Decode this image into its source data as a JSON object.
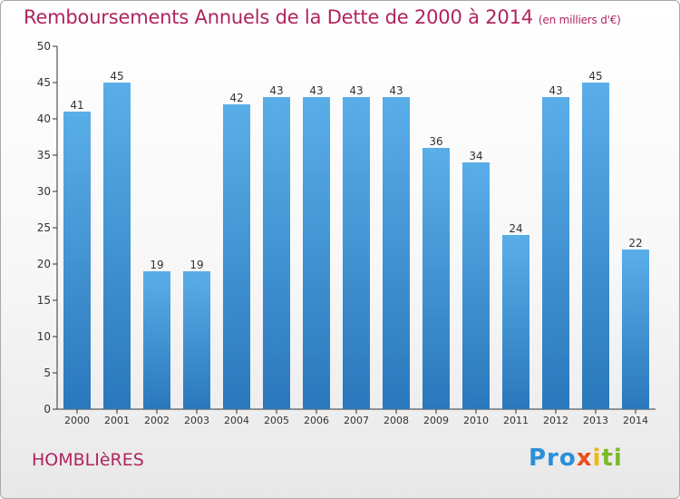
{
  "chart_data": {
    "type": "bar",
    "title": "Remboursements Annuels de la Dette de 2000 à 2014",
    "subtitle": "(en milliers d'€)",
    "categories": [
      "2000",
      "2001",
      "2002",
      "2003",
      "2004",
      "2005",
      "2006",
      "2007",
      "2008",
      "2009",
      "2010",
      "2011",
      "2012",
      "2013",
      "2014"
    ],
    "values": [
      41,
      45,
      19,
      19,
      42,
      43,
      43,
      43,
      43,
      36,
      34,
      24,
      43,
      45,
      22
    ],
    "ylim": [
      0,
      50
    ],
    "yticks": [
      0,
      5,
      10,
      15,
      20,
      25,
      30,
      35,
      40,
      45,
      50
    ],
    "grid": false,
    "bar_color": "#4a9de0"
  },
  "footer": {
    "town": "HOMBLIèRES",
    "logo_parts": [
      "Pro",
      "x",
      "i",
      "ti"
    ],
    "logo_colors": [
      "#2a8fd8",
      "#e94f1e",
      "#f2b80f",
      "#7ab929"
    ]
  }
}
